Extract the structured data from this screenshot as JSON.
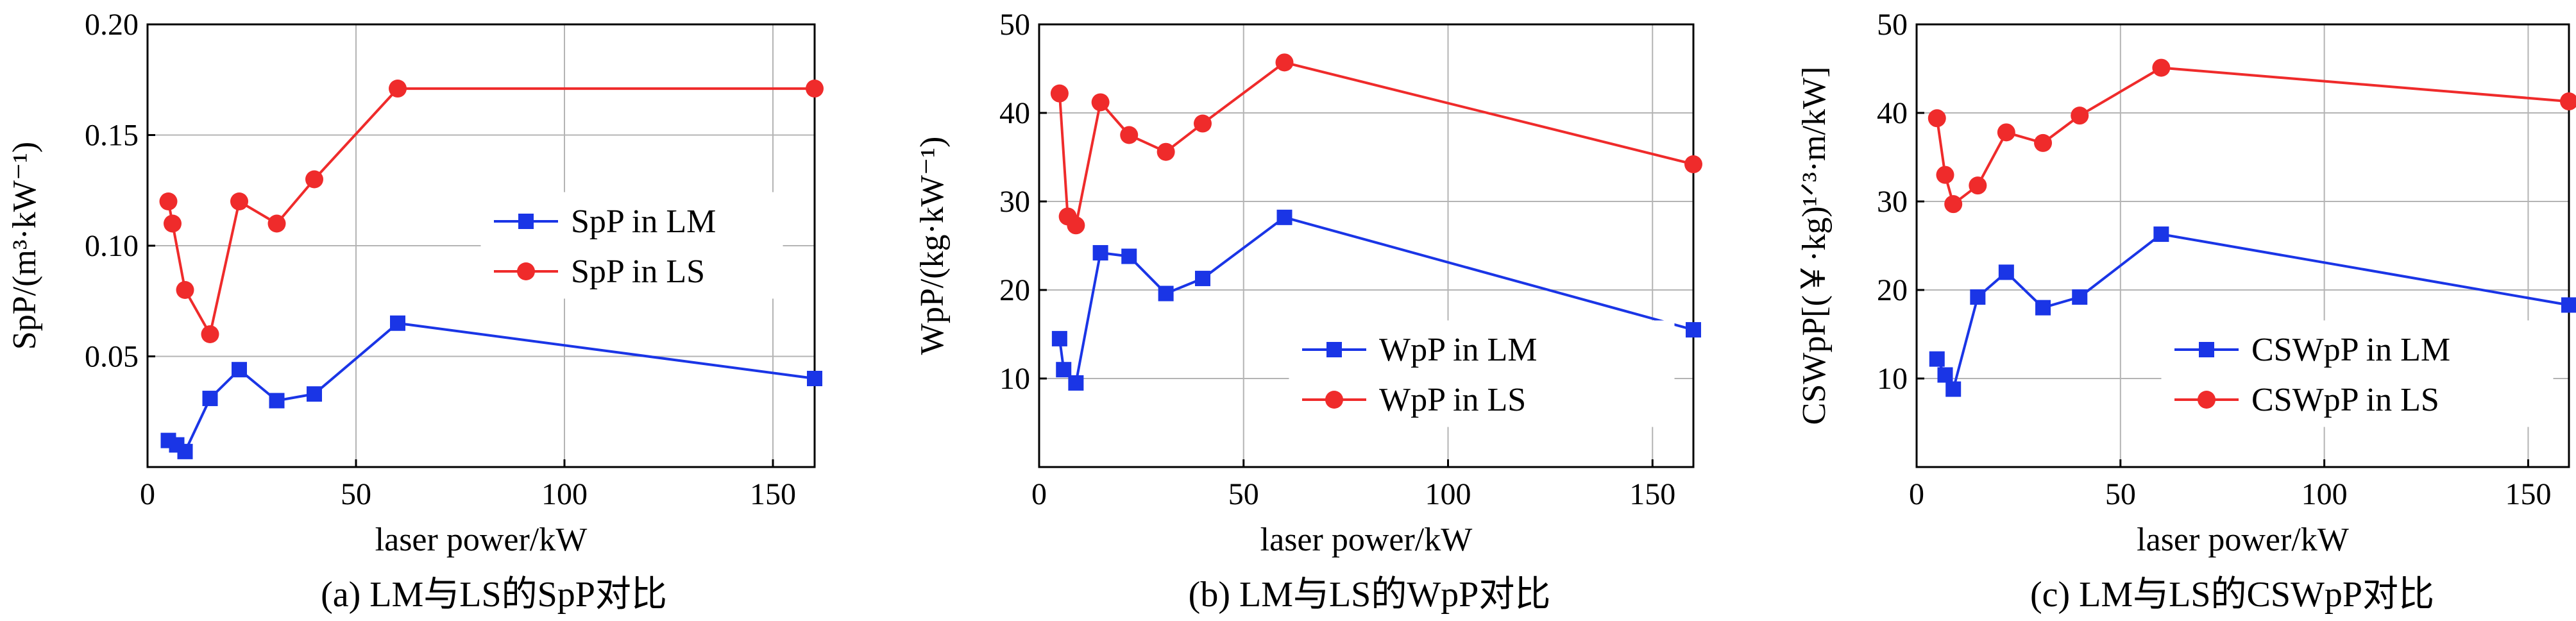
{
  "chart_data": [
    {
      "type": "line",
      "caption": "(a) LM与LS的SpP对比",
      "xlabel": "laser power/kW",
      "ylabel": "SpP/(m³·kW⁻¹)",
      "xlim": [
        0,
        160
      ],
      "ylim": [
        0,
        0.2
      ],
      "xticks": [
        0,
        50,
        100,
        150
      ],
      "xtick_labels": [
        "0",
        "50",
        "100",
        "150"
      ],
      "yticks": [
        0.05,
        0.1,
        0.15,
        0.2
      ],
      "ytick_labels": [
        "0.05",
        "0.10",
        "0.15",
        "0.20"
      ],
      "grid": true,
      "legend_position": "center-right",
      "series": [
        {
          "name": "SpP in LM",
          "color": "#1a35e6",
          "marker": "square",
          "x": [
            5,
            7,
            9,
            15,
            22,
            31,
            40,
            60,
            160
          ],
          "y": [
            0.012,
            0.01,
            0.007,
            0.031,
            0.044,
            0.03,
            0.033,
            0.065,
            0.04
          ]
        },
        {
          "name": "SpP in LS",
          "color": "#ef2b2b",
          "marker": "circle",
          "x": [
            5,
            6,
            9,
            15,
            22,
            31,
            40,
            60,
            160
          ],
          "y": [
            0.12,
            0.11,
            0.08,
            0.06,
            0.12,
            0.11,
            0.13,
            0.171,
            0.171
          ]
        }
      ]
    },
    {
      "type": "line",
      "caption": "(b) LM与LS的WpP对比",
      "xlabel": "laser power/kW",
      "ylabel": "WpP/(kg·kW⁻¹)",
      "xlim": [
        0,
        160
      ],
      "ylim": [
        0,
        50
      ],
      "xticks": [
        0,
        50,
        100,
        150
      ],
      "xtick_labels": [
        "0",
        "50",
        "100",
        "150"
      ],
      "yticks": [
        10,
        20,
        30,
        40,
        50
      ],
      "ytick_labels": [
        "10",
        "20",
        "30",
        "40",
        "50"
      ],
      "grid": true,
      "legend_position": "bottom-right",
      "series": [
        {
          "name": "WpP in LM",
          "color": "#1a35e6",
          "marker": "square",
          "x": [
            5,
            6,
            9,
            15,
            22,
            31,
            40,
            60,
            160
          ],
          "y": [
            14.5,
            11,
            9.5,
            24.2,
            23.8,
            19.6,
            21.3,
            28.2,
            15.5
          ]
        },
        {
          "name": "WpP in LS",
          "color": "#ef2b2b",
          "marker": "circle",
          "x": [
            5,
            7,
            9,
            15,
            22,
            31,
            40,
            60,
            160
          ],
          "y": [
            42.2,
            28.3,
            27.3,
            41.2,
            37.5,
            35.6,
            38.8,
            45.7,
            34.2
          ]
        }
      ]
    },
    {
      "type": "line",
      "caption": "(c) LM与LS的CSWpP对比",
      "xlabel": "laser power/kW",
      "ylabel": "CSWpP[(￥·kg)¹ᐟ³·m/kW]",
      "xlim": [
        0,
        160
      ],
      "ylim": [
        0,
        50
      ],
      "xticks": [
        0,
        50,
        100,
        150
      ],
      "xtick_labels": [
        "0",
        "50",
        "100",
        "150"
      ],
      "yticks": [
        10,
        20,
        30,
        40,
        50
      ],
      "ytick_labels": [
        "10",
        "20",
        "30",
        "40",
        "50"
      ],
      "grid": true,
      "legend_position": "bottom-right",
      "series": [
        {
          "name": "CSWpP in LM",
          "color": "#1a35e6",
          "marker": "square",
          "x": [
            5,
            7,
            9,
            15,
            22,
            31,
            40,
            60,
            160
          ],
          "y": [
            12.2,
            10.4,
            8.8,
            19.2,
            22,
            18,
            19.2,
            26.3,
            18.3
          ]
        },
        {
          "name": "CSWpP in LS",
          "color": "#ef2b2b",
          "marker": "circle",
          "x": [
            5,
            7,
            9,
            15,
            22,
            31,
            40,
            60,
            160
          ],
          "y": [
            39.4,
            33,
            29.7,
            31.8,
            37.8,
            36.6,
            39.7,
            45.1,
            41.3
          ]
        }
      ]
    }
  ]
}
